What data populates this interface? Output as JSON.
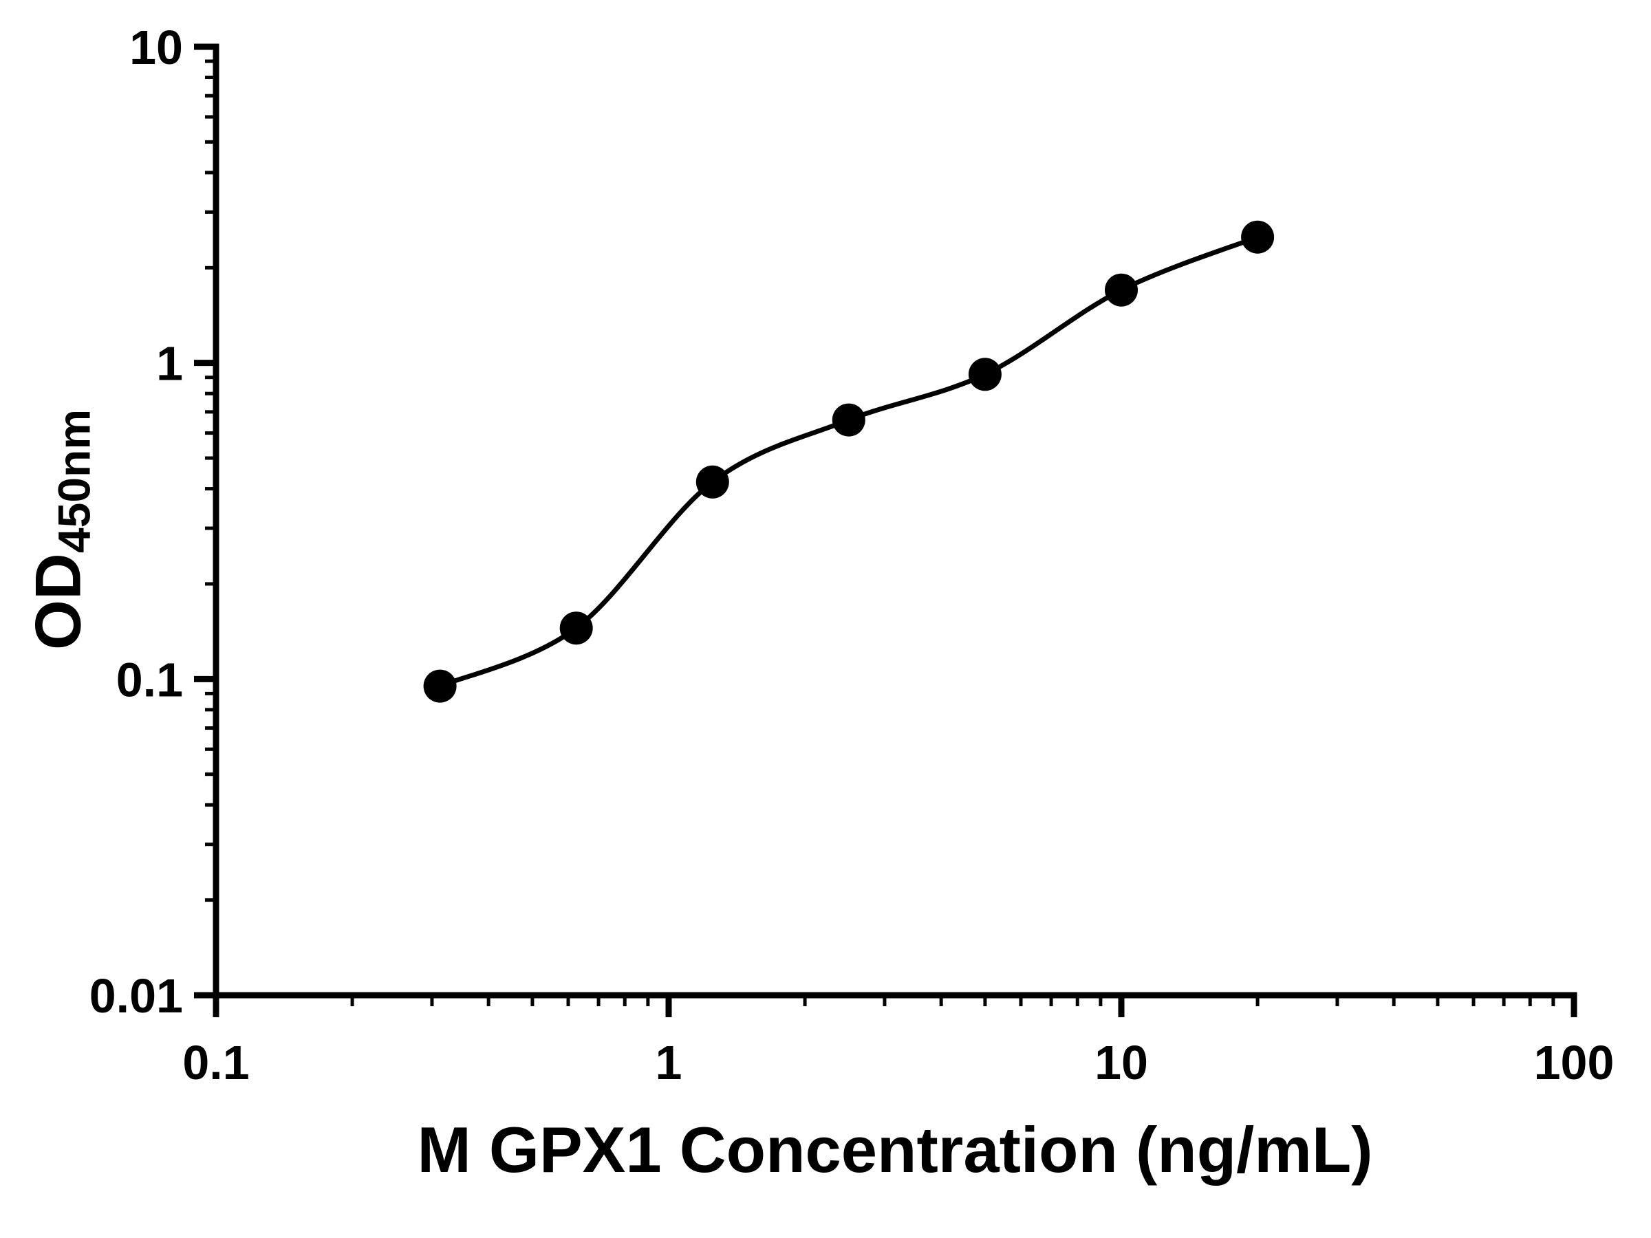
{
  "chart_data": {
    "type": "scatter",
    "title": "",
    "xlabel": "M GPX1 Concentration (ng/mL)",
    "ylabel": "OD450nm",
    "ylabel_base": "OD",
    "ylabel_sub": "450nm",
    "xscale": "log",
    "yscale": "log",
    "xlim": [
      0.1,
      100
    ],
    "ylim": [
      0.01,
      10
    ],
    "x_ticks": [
      0.1,
      1,
      10,
      100
    ],
    "x_tick_labels": [
      "0.1",
      "1",
      "10",
      "100"
    ],
    "y_ticks": [
      0.01,
      0.1,
      1,
      10
    ],
    "y_tick_labels": [
      "0.01",
      "0.1",
      "1",
      "10"
    ],
    "minor_log_ticks": true,
    "grid": false,
    "legend": "none",
    "series": [
      {
        "name": "standard-curve-points",
        "x": [
          0.3125,
          0.625,
          1.25,
          2.5,
          5,
          10,
          20
        ],
        "y": [
          0.095,
          0.145,
          0.42,
          0.66,
          0.92,
          1.7,
          2.5
        ],
        "marker": "filled-circle",
        "fit_line": true
      }
    ],
    "marker_color": "#000000",
    "line_color": "#000000",
    "axis_color": "#000000",
    "background_color": "#ffffff"
  }
}
